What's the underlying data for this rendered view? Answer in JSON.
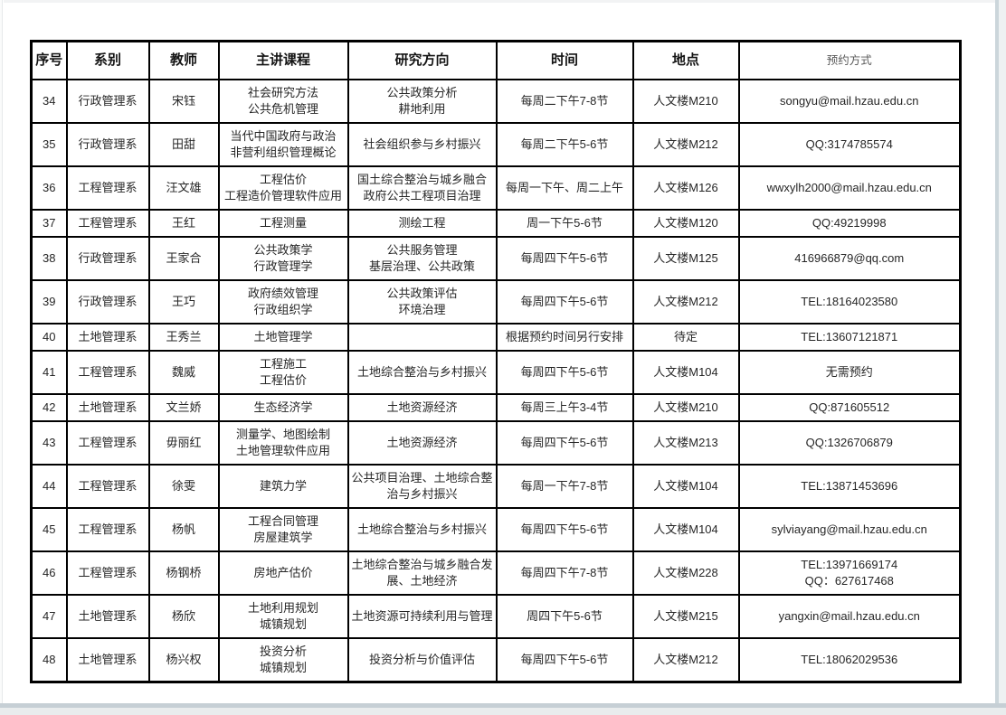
{
  "page": {
    "header": {
      "columns": [
        {
          "key": "num",
          "label": "序号"
        },
        {
          "key": "dept",
          "label": "系别"
        },
        {
          "key": "teacher",
          "label": "教师"
        },
        {
          "key": "courses",
          "label": "主讲课程"
        },
        {
          "key": "research",
          "label": "研究方向"
        },
        {
          "key": "time",
          "label": "时间"
        },
        {
          "key": "location",
          "label": "地点"
        },
        {
          "key": "contact",
          "label": "预约方式"
        }
      ]
    },
    "rows": [
      {
        "num": "34",
        "dept": "行政管理系",
        "teacher": "宋钰",
        "courses": [
          "社会研究方法",
          "公共危机管理"
        ],
        "research": [
          "公共政策分析",
          "耕地利用"
        ],
        "time": "每周二下午7-8节",
        "location": "人文楼M210",
        "contact": [
          "songyu@mail.hzau.edu.cn"
        ]
      },
      {
        "num": "35",
        "dept": "行政管理系",
        "teacher": "田甜",
        "courses": [
          "当代中国政府与政治",
          "非营利组织管理概论"
        ],
        "research": [
          "社会组织参与乡村振兴"
        ],
        "time": "每周二下午5-6节",
        "location": "人文楼M212",
        "contact": [
          "QQ:3174785574"
        ]
      },
      {
        "num": "36",
        "dept": "工程管理系",
        "teacher": "汪文雄",
        "courses": [
          "工程估价",
          "工程造价管理软件应用"
        ],
        "research": [
          "国土综合整治与城乡融合",
          "政府公共工程项目治理"
        ],
        "time": "每周一下午、周二上午",
        "location": "人文楼M126",
        "contact": [
          "wwxylh2000@mail.hzau.edu.cn"
        ]
      },
      {
        "num": "37",
        "dept": "工程管理系",
        "teacher": "王红",
        "courses": [
          "工程测量"
        ],
        "research": [
          "测绘工程"
        ],
        "time": "周一下午5-6节",
        "location": "人文楼M120",
        "contact": [
          "QQ:49219998"
        ]
      },
      {
        "num": "38",
        "dept": "行政管理系",
        "teacher": "王家合",
        "courses": [
          "公共政策学",
          "行政管理学"
        ],
        "research": [
          "公共服务管理",
          "基层治理、公共政策"
        ],
        "time": "每周四下午5-6节",
        "location": "人文楼M125",
        "contact": [
          "416966879@qq.com"
        ]
      },
      {
        "num": "39",
        "dept": "行政管理系",
        "teacher": "王巧",
        "courses": [
          "政府绩效管理",
          "行政组织学"
        ],
        "research": [
          "公共政策评估",
          "环境治理"
        ],
        "time": "每周四下午5-6节",
        "location": "人文楼M212",
        "contact": [
          "TEL:18164023580"
        ]
      },
      {
        "num": "40",
        "dept": "土地管理系",
        "teacher": "王秀兰",
        "courses": [
          "土地管理学"
        ],
        "research": [],
        "time": "根据预约时间另行安排",
        "location": "待定",
        "contact": [
          "TEL:13607121871"
        ]
      },
      {
        "num": "41",
        "dept": "工程管理系",
        "teacher": "魏威",
        "courses": [
          "工程施工",
          "工程估价"
        ],
        "research": [
          "土地综合整治与乡村振兴"
        ],
        "time": "每周四下午5-6节",
        "location": "人文楼M104",
        "contact": [
          "无需预约"
        ]
      },
      {
        "num": "42",
        "dept": "土地管理系",
        "teacher": "文兰娇",
        "courses": [
          "生态经济学"
        ],
        "research": [
          "土地资源经济"
        ],
        "time": "每周三上午3-4节",
        "location": "人文楼M210",
        "contact": [
          "QQ:871605512"
        ]
      },
      {
        "num": "43",
        "dept": "工程管理系",
        "teacher": "毋丽红",
        "courses": [
          "测量学、地图绘制",
          "土地管理软件应用"
        ],
        "research": [
          "土地资源经济"
        ],
        "time": "每周四下午5-6节",
        "location": "人文楼M213",
        "contact": [
          "QQ:1326706879"
        ]
      },
      {
        "num": "44",
        "dept": "工程管理系",
        "teacher": "徐雯",
        "courses": [
          "建筑力学"
        ],
        "research": [
          "公共项目治理、土地综合整治与乡村振兴"
        ],
        "time": "每周一下午7-8节",
        "location": "人文楼M104",
        "contact": [
          "TEL:13871453696"
        ]
      },
      {
        "num": "45",
        "dept": "工程管理系",
        "teacher": "杨帆",
        "courses": [
          "工程合同管理",
          "房屋建筑学"
        ],
        "research": [
          "土地综合整治与乡村振兴"
        ],
        "time": "每周四下午5-6节",
        "location": "人文楼M104",
        "contact": [
          "sylviayang@mail.hzau.edu.cn"
        ]
      },
      {
        "num": "46",
        "dept": "工程管理系",
        "teacher": "杨钢桥",
        "courses": [
          "房地产估价"
        ],
        "research": [
          "土地综合整治与城乡融合发展、土地经济"
        ],
        "time": "每周四下午7-8节",
        "location": "人文楼M228",
        "contact": [
          "TEL:13971669174",
          "QQ：627617468"
        ]
      },
      {
        "num": "47",
        "dept": "土地管理系",
        "teacher": "杨欣",
        "courses": [
          "土地利用规划",
          "城镇规划"
        ],
        "research": [
          "土地资源可持续利用与管理"
        ],
        "time": "周四下午5-6节",
        "location": "人文楼M215",
        "contact": [
          "yangxin@mail.hzau.edu.cn"
        ]
      },
      {
        "num": "48",
        "dept": "土地管理系",
        "teacher": "杨兴权",
        "courses": [
          "投资分析",
          "城镇规划"
        ],
        "research": [
          "投资分析与价值评估"
        ],
        "time": "每周四下午5-6节",
        "location": "人文楼M212",
        "contact": [
          "TEL:18062029536"
        ]
      }
    ]
  }
}
